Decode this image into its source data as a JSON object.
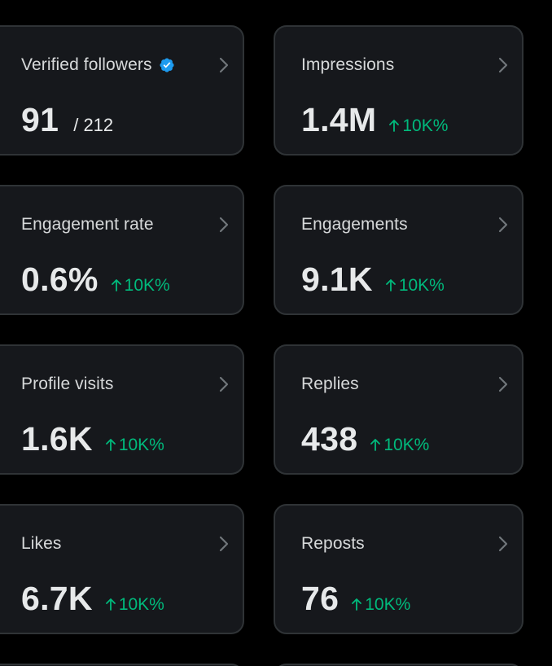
{
  "cards": [
    {
      "label": "Verified followers",
      "value": "91",
      "total": "/ 212",
      "verified": true,
      "chevron_icon": "chevron-right-icon",
      "badge_icon": "verified-badge-icon"
    },
    {
      "label": "Impressions",
      "value": "1.4M",
      "change": "10K%",
      "change_icon": "arrow-up-icon"
    },
    {
      "label": "Engagement rate",
      "value": "0.6%",
      "change": "10K%",
      "change_icon": "arrow-up-icon"
    },
    {
      "label": "Engagements",
      "value": "9.1K",
      "change": "10K%",
      "change_icon": "arrow-up-icon"
    },
    {
      "label": "Profile visits",
      "value": "1.6K",
      "change": "10K%",
      "change_icon": "arrow-up-icon"
    },
    {
      "label": "Replies",
      "value": "438",
      "change": "10K%",
      "change_icon": "arrow-up-icon"
    },
    {
      "label": "Likes",
      "value": "6.7K",
      "change": "10K%",
      "change_icon": "arrow-up-icon"
    },
    {
      "label": "Reposts",
      "value": "76",
      "change": "10K%",
      "change_icon": "arrow-up-icon"
    }
  ],
  "colors": {
    "background": "#000000",
    "card": "#16181c",
    "border": "#2f3336",
    "text": "#e7e9ea",
    "positive": "#00ba7c",
    "verified": "#1d9bf0",
    "chevron": "#71767b"
  }
}
